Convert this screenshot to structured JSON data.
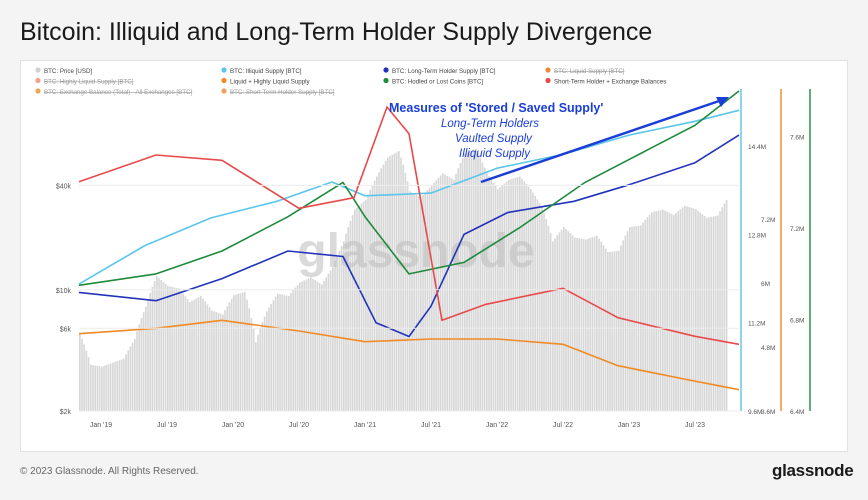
{
  "title": "Bitcoin: Illiquid and Long-Term Holder Supply Divergence",
  "footer": {
    "copyright": "© 2023 Glassnode. All Rights Reserved.",
    "brand": "glassnode"
  },
  "watermark": "glassnode",
  "colors": {
    "price": "#d0d0d0",
    "illiquid": "#5bc5ea",
    "lth": "#2233bb",
    "liquid": "#f0883a",
    "highly_liquid": "#f4a08a",
    "sth_exchange": "#e84a4a",
    "liquid_highly": "#f08a24",
    "hodled": "#1d8a3c",
    "exchange_total": "#e8a850",
    "sth_supply": "#f2a060"
  },
  "chart_data": {
    "type": "line",
    "legend": [
      {
        "label": "BTC: Price [USD]",
        "color": "#d0d0d0",
        "crossed": false
      },
      {
        "label": "BTC: Illiquid Supply [BTC]",
        "color": "#5bc5ea",
        "crossed": false
      },
      {
        "label": "BTC: Long-Term Holder Supply [BTC]",
        "color": "#2233bb",
        "crossed": false
      },
      {
        "label": "BTC: Liquid Supply [BTC]",
        "color": "#f0883a",
        "crossed": true
      },
      {
        "label": "BTC: Highly Liquid Supply [BTC]",
        "color": "#f4a08a",
        "crossed": true
      },
      {
        "label": "Liquid + Highly Liquid Supply",
        "color": "#f08a24",
        "crossed": false
      },
      {
        "label": "BTC: Hodled or Lost Coins [BTC]",
        "color": "#1d8a3c",
        "crossed": false
      },
      {
        "label": "Short-Term Holder + Exchange Balances",
        "color": "#e84a4a",
        "crossed": false
      },
      {
        "label": "BTC: Exchange Balance (Total) - All Exchanges [BTC]",
        "color": "#e8a850",
        "crossed": true
      },
      {
        "label": "BTC: Short-Term Holder Supply [BTC]",
        "color": "#f2a060",
        "crossed": true
      }
    ],
    "x_ticks": [
      "Jan '19",
      "Jul '19",
      "Jan '20",
      "Jul '20",
      "Jan '21",
      "Jul '21",
      "Jan '22",
      "Jul '22",
      "Jan '23",
      "Jul '23"
    ],
    "y_left_ticks": [
      "$2k",
      "$6k",
      "$10k",
      "$40k"
    ],
    "y_axis2_ticks": [
      "9.6M",
      "11.2M",
      "12.8M",
      "14.4M"
    ],
    "y_axis3_ticks": [
      "3.6M",
      "4.8M",
      "6M",
      "7.2M"
    ],
    "y_axis4_ticks": [
      "6.4M",
      "6.8M",
      "7.2M",
      "7.6M"
    ],
    "y_axis_left_scale": "log",
    "annotation": {
      "heading": "Measures of 'Stored / Saved Supply'",
      "lines": [
        "Long-Term Holders",
        "Vaulted Supply",
        "Illiquid Supply"
      ]
    },
    "x_range": [
      "2018-11",
      "2023-11"
    ],
    "price_usd": [
      [
        "2018-11",
        5600
      ],
      [
        "2018-12",
        3700
      ],
      [
        "2019-01",
        3600
      ],
      [
        "2019-02",
        3800
      ],
      [
        "2019-03",
        4000
      ],
      [
        "2019-04",
        5200
      ],
      [
        "2019-05",
        8000
      ],
      [
        "2019-06",
        12000
      ],
      [
        "2019-07",
        10500
      ],
      [
        "2019-08",
        10200
      ],
      [
        "2019-09",
        8500
      ],
      [
        "2019-10",
        9200
      ],
      [
        "2019-11",
        7600
      ],
      [
        "2019-12",
        7200
      ],
      [
        "2020-01",
        9300
      ],
      [
        "2020-02",
        9700
      ],
      [
        "2020-03",
        5000
      ],
      [
        "2020-04",
        7500
      ],
      [
        "2020-05",
        9500
      ],
      [
        "2020-06",
        9200
      ],
      [
        "2020-07",
        11000
      ],
      [
        "2020-08",
        11800
      ],
      [
        "2020-09",
        10700
      ],
      [
        "2020-10",
        13500
      ],
      [
        "2020-11",
        19000
      ],
      [
        "2020-12",
        29000
      ],
      [
        "2021-01",
        33000
      ],
      [
        "2021-02",
        45000
      ],
      [
        "2021-03",
        58000
      ],
      [
        "2021-04",
        63000
      ],
      [
        "2021-05",
        37000
      ],
      [
        "2021-06",
        34000
      ],
      [
        "2021-07",
        40000
      ],
      [
        "2021-08",
        47000
      ],
      [
        "2021-09",
        43000
      ],
      [
        "2021-10",
        61000
      ],
      [
        "2021-11",
        65000
      ],
      [
        "2021-12",
        47000
      ],
      [
        "2022-01",
        38000
      ],
      [
        "2022-02",
        43000
      ],
      [
        "2022-03",
        45000
      ],
      [
        "2022-04",
        38000
      ],
      [
        "2022-05",
        30000
      ],
      [
        "2022-06",
        19000
      ],
      [
        "2022-07",
        23000
      ],
      [
        "2022-08",
        20000
      ],
      [
        "2022-09",
        19500
      ],
      [
        "2022-10",
        20500
      ],
      [
        "2022-11",
        16500
      ],
      [
        "2022-12",
        16800
      ],
      [
        "2023-01",
        23000
      ],
      [
        "2023-02",
        23500
      ],
      [
        "2023-03",
        28000
      ],
      [
        "2023-04",
        29000
      ],
      [
        "2023-05",
        27000
      ],
      [
        "2023-06",
        30500
      ],
      [
        "2023-07",
        29200
      ],
      [
        "2023-08",
        26000
      ],
      [
        "2023-09",
        26800
      ],
      [
        "2023-10",
        34500
      ]
    ],
    "series": [
      {
        "name": "BTC: Illiquid Supply [BTC]",
        "axis": "illiquid_supply",
        "color": "#5bc5ea",
        "values": [
          [
            "2018-11",
            11.9
          ],
          [
            "2019-05",
            12.6
          ],
          [
            "2019-11",
            13.1
          ],
          [
            "2020-05",
            13.4
          ],
          [
            "2020-10",
            13.75
          ],
          [
            "2021-01",
            13.5
          ],
          [
            "2021-07",
            13.55
          ],
          [
            "2022-01",
            14.0
          ],
          [
            "2022-07",
            14.25
          ],
          [
            "2023-01",
            14.6
          ],
          [
            "2023-07",
            14.85
          ],
          [
            "2023-11",
            15.05
          ]
        ]
      },
      {
        "name": "BTC: Long-Term Holder Supply [BTC]",
        "axis": "illiquid_supply",
        "color": "#2233bb",
        "values": [
          [
            "2018-11",
            11.75
          ],
          [
            "2019-06",
            11.6
          ],
          [
            "2019-12",
            12.0
          ],
          [
            "2020-06",
            12.5
          ],
          [
            "2020-11",
            12.4
          ],
          [
            "2021-02",
            11.2
          ],
          [
            "2021-05",
            10.95
          ],
          [
            "2021-07",
            11.5
          ],
          [
            "2021-10",
            12.8
          ],
          [
            "2022-02",
            13.2
          ],
          [
            "2022-08",
            13.4
          ],
          [
            "2023-01",
            13.7
          ],
          [
            "2023-07",
            14.1
          ],
          [
            "2023-11",
            14.6
          ]
        ]
      },
      {
        "name": "Liquid + Highly Liquid Supply",
        "axis": "liquid_supply",
        "color": "#f08a24",
        "values": [
          [
            "2018-11",
            5.05
          ],
          [
            "2019-06",
            5.15
          ],
          [
            "2019-12",
            5.3
          ],
          [
            "2020-07",
            5.1
          ],
          [
            "2021-01",
            4.9
          ],
          [
            "2021-07",
            4.95
          ],
          [
            "2022-01",
            4.95
          ],
          [
            "2022-07",
            4.85
          ],
          [
            "2022-12",
            4.45
          ],
          [
            "2023-06",
            4.2
          ],
          [
            "2023-11",
            4.0
          ]
        ]
      },
      {
        "name": "BTC: Hodled or Lost Coins [BTC]",
        "axis": "hodled_coins",
        "color": "#1d8a3c",
        "values": [
          [
            "2018-11",
            6.95
          ],
          [
            "2019-06",
            7.0
          ],
          [
            "2019-12",
            7.1
          ],
          [
            "2020-06",
            7.25
          ],
          [
            "2020-11",
            7.4
          ],
          [
            "2021-01",
            7.25
          ],
          [
            "2021-05",
            7.0
          ],
          [
            "2021-10",
            7.05
          ],
          [
            "2022-03",
            7.2
          ],
          [
            "2022-09",
            7.4
          ],
          [
            "2023-03",
            7.55
          ],
          [
            "2023-07",
            7.65
          ],
          [
            "2023-11",
            7.8
          ]
        ]
      },
      {
        "name": "Short-Term Holder + Exchange Balances",
        "axis": "liquid_supply",
        "color": "#e84a4a",
        "values": [
          [
            "2018-11",
            7.9
          ],
          [
            "2019-06",
            8.4
          ],
          [
            "2019-12",
            8.3
          ],
          [
            "2020-07",
            7.4
          ],
          [
            "2020-12",
            7.6
          ],
          [
            "2021-03",
            9.3
          ],
          [
            "2021-05",
            8.8
          ],
          [
            "2021-08",
            5.3
          ],
          [
            "2021-12",
            5.6
          ],
          [
            "2022-07",
            5.9
          ],
          [
            "2022-12",
            5.35
          ],
          [
            "2023-07",
            5.0
          ],
          [
            "2023-11",
            4.85
          ]
        ]
      }
    ]
  }
}
